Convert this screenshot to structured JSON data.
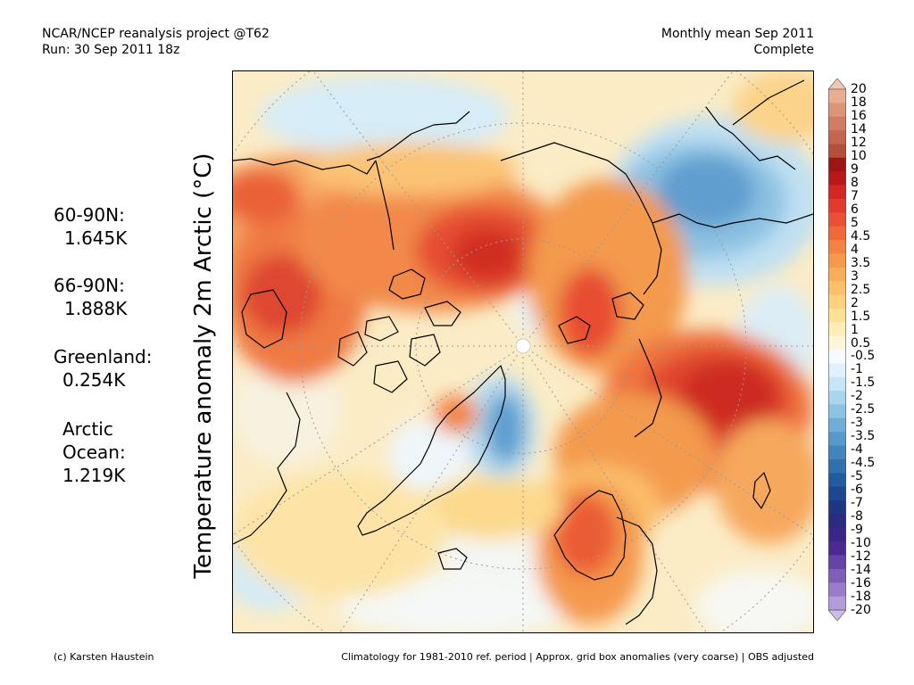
{
  "header": {
    "line1_left": "NCAR/NCEP reanalysis project @T62",
    "line2_left": "Run: 30 Sep 2011 18z",
    "line1_right": "Monthly mean Sep 2011",
    "line2_right": "Complete"
  },
  "stats": [
    {
      "label": "60-90N:",
      "value": "1.645K"
    },
    {
      "label": "66-90N:",
      "value": "1.888K"
    },
    {
      "label": "Greenland:",
      "value": "0.254K"
    },
    {
      "label": "Arctic",
      "label2": "Ocean:",
      "value": "1.219K"
    }
  ],
  "axis_label": "Temperature anomaly 2m Arctic (°C)",
  "colorbar": {
    "labels": [
      "20",
      "18",
      "16",
      "14",
      "12",
      "10",
      "9",
      "8",
      "7",
      "6",
      "5",
      "4.5",
      "4",
      "3.5",
      "3",
      "2.5",
      "2",
      "1.5",
      "1",
      "0.5",
      "-0.5",
      "-1",
      "-1.5",
      "-2",
      "-2.5",
      "-3",
      "-3.5",
      "-4",
      "-4.5",
      "-5",
      "-6",
      "-7",
      "-8",
      "-9",
      "-10",
      "-12",
      "-14",
      "-16",
      "-18",
      "-20"
    ],
    "colors": [
      "#f2c8b0",
      "#e8ad93",
      "#dd9579",
      "#d07d63",
      "#c4654f",
      "#b34f3d",
      "#9c1416",
      "#b8181a",
      "#d42624",
      "#e33a2e",
      "#ea5033",
      "#ef6a3a",
      "#f28343",
      "#f5994e",
      "#f8ad5b",
      "#fac06b",
      "#fcd27e",
      "#fde196",
      "#feedb6",
      "#fdf6da",
      "#f7fbff",
      "#e0f1fb",
      "#c6e6f5",
      "#a9d6ec",
      "#8cc3e3",
      "#70aed7",
      "#5799ca",
      "#4284bd",
      "#316faf",
      "#245ba0",
      "#1d4791",
      "#1f3683",
      "#2c2a7e",
      "#3b2688",
      "#4b2a94",
      "#6643a6",
      "#7f5eb8",
      "#9a7cc9",
      "#b49bd9",
      "#cdbde8"
    ]
  },
  "footer": {
    "left": "(c) Karsten Haustein",
    "right": "Climatology for 1981-2010 ref. period | Approx. grid box anomalies (very coarse) | OBS adjusted"
  }
}
